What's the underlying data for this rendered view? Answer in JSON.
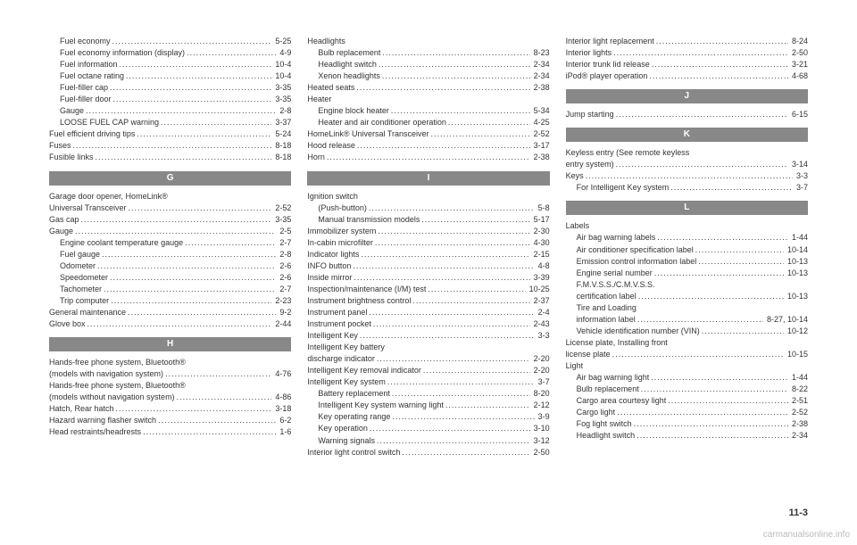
{
  "pageNumber": "11-3",
  "watermark": "carmanualsonline.info",
  "columns": [
    [
      {
        "type": "entry",
        "label": "Fuel economy",
        "page": "5-25",
        "indent": true
      },
      {
        "type": "entry",
        "label": "Fuel economy information (display)",
        "page": "4-9",
        "indent": true
      },
      {
        "type": "entry",
        "label": "Fuel information",
        "page": "10-4",
        "indent": true
      },
      {
        "type": "entry",
        "label": "Fuel octane rating",
        "page": "10-4",
        "indent": true
      },
      {
        "type": "entry",
        "label": "Fuel-filler cap",
        "page": "3-35",
        "indent": true
      },
      {
        "type": "entry",
        "label": "Fuel-filler door",
        "page": "3-35",
        "indent": true
      },
      {
        "type": "entry",
        "label": "Gauge",
        "page": "2-8",
        "indent": true
      },
      {
        "type": "entry",
        "label": "LOOSE FUEL CAP warning",
        "page": "3-37",
        "indent": true
      },
      {
        "type": "entry",
        "label": "Fuel efficient driving tips",
        "page": "5-24"
      },
      {
        "type": "entry",
        "label": "Fuses",
        "page": "8-18"
      },
      {
        "type": "entry",
        "label": "Fusible links",
        "page": "8-18"
      },
      {
        "type": "section",
        "label": "G"
      },
      {
        "type": "entry",
        "label": "Garage door opener, HomeLink®",
        "noPage": true
      },
      {
        "type": "entry",
        "label": "Universal Transceiver",
        "page": "2-52"
      },
      {
        "type": "entry",
        "label": "Gas cap",
        "page": "3-35"
      },
      {
        "type": "entry",
        "label": "Gauge",
        "page": "2-5"
      },
      {
        "type": "entry",
        "label": "Engine coolant temperature gauge",
        "page": "2-7",
        "indent": true
      },
      {
        "type": "entry",
        "label": "Fuel gauge",
        "page": "2-8",
        "indent": true
      },
      {
        "type": "entry",
        "label": "Odometer",
        "page": "2-6",
        "indent": true
      },
      {
        "type": "entry",
        "label": "Speedometer",
        "page": "2-6",
        "indent": true
      },
      {
        "type": "entry",
        "label": "Tachometer",
        "page": "2-7",
        "indent": true
      },
      {
        "type": "entry",
        "label": "Trip computer",
        "page": "2-23",
        "indent": true
      },
      {
        "type": "entry",
        "label": "General maintenance",
        "page": "9-2"
      },
      {
        "type": "entry",
        "label": "Glove box",
        "page": "2-44"
      },
      {
        "type": "section",
        "label": "H"
      },
      {
        "type": "entry",
        "label": "Hands-free phone system, Bluetooth®",
        "noPage": true
      },
      {
        "type": "entry",
        "label": "(models with navigation system)",
        "page": "4-76"
      },
      {
        "type": "entry",
        "label": "Hands-free phone system, Bluetooth®",
        "noPage": true
      },
      {
        "type": "entry",
        "label": "(models without navigation system)",
        "page": "4-86"
      },
      {
        "type": "entry",
        "label": "Hatch, Rear hatch",
        "page": "3-18"
      },
      {
        "type": "entry",
        "label": "Hazard warning flasher switch",
        "page": "6-2"
      },
      {
        "type": "entry",
        "label": "Head restraints/headrests",
        "page": "1-6"
      }
    ],
    [
      {
        "type": "entry",
        "label": "Headlights",
        "noPage": true
      },
      {
        "type": "entry",
        "label": "Bulb replacement",
        "page": "8-23",
        "indent": true
      },
      {
        "type": "entry",
        "label": "Headlight switch",
        "page": "2-34",
        "indent": true
      },
      {
        "type": "entry",
        "label": "Xenon headlights",
        "page": "2-34",
        "indent": true
      },
      {
        "type": "entry",
        "label": "Heated seats",
        "page": "2-38"
      },
      {
        "type": "entry",
        "label": "Heater",
        "noPage": true
      },
      {
        "type": "entry",
        "label": "Engine block heater",
        "page": "5-34",
        "indent": true
      },
      {
        "type": "entry",
        "label": "Heater and air conditioner operation",
        "page": "4-25",
        "indent": true
      },
      {
        "type": "entry",
        "label": "HomeLink® Universal Transceiver",
        "page": "2-52"
      },
      {
        "type": "entry",
        "label": "Hood release",
        "page": "3-17"
      },
      {
        "type": "entry",
        "label": "Horn",
        "page": "2-38"
      },
      {
        "type": "section",
        "label": "I"
      },
      {
        "type": "entry",
        "label": "Ignition switch",
        "noPage": true
      },
      {
        "type": "entry",
        "label": "(Push-button)",
        "page": "5-8",
        "indent": true
      },
      {
        "type": "entry",
        "label": "Manual transmission models",
        "page": "5-17",
        "indent": true
      },
      {
        "type": "entry",
        "label": "Immobilizer system",
        "page": "2-30"
      },
      {
        "type": "entry",
        "label": "In-cabin microfilter",
        "page": "4-30"
      },
      {
        "type": "entry",
        "label": "Indicator lights",
        "page": "2-15"
      },
      {
        "type": "entry",
        "label": "INFO button",
        "page": "4-8"
      },
      {
        "type": "entry",
        "label": "Inside mirror",
        "page": "3-39"
      },
      {
        "type": "entry",
        "label": "Inspection/maintenance (I/M) test",
        "page": "10-25"
      },
      {
        "type": "entry",
        "label": "Instrument brightness control",
        "page": "2-37"
      },
      {
        "type": "entry",
        "label": "Instrument panel",
        "page": "2-4"
      },
      {
        "type": "entry",
        "label": "Instrument pocket",
        "page": "2-43"
      },
      {
        "type": "entry",
        "label": "Intelligent Key",
        "page": "3-3"
      },
      {
        "type": "entry",
        "label": "Intelligent Key battery",
        "noPage": true
      },
      {
        "type": "entry",
        "label": "discharge indicator",
        "page": "2-20"
      },
      {
        "type": "entry",
        "label": "Intelligent Key removal indicator",
        "page": "2-20"
      },
      {
        "type": "entry",
        "label": "Intelligent Key system",
        "page": "3-7"
      },
      {
        "type": "entry",
        "label": "Battery replacement",
        "page": "8-20",
        "indent": true
      },
      {
        "type": "entry",
        "label": "Intelligent Key system warning light",
        "page": "2-12",
        "indent": true
      },
      {
        "type": "entry",
        "label": "Key operating range",
        "page": "3-9",
        "indent": true
      },
      {
        "type": "entry",
        "label": "Key operation",
        "page": "3-10",
        "indent": true
      },
      {
        "type": "entry",
        "label": "Warning signals",
        "page": "3-12",
        "indent": true
      },
      {
        "type": "entry",
        "label": "Interior light control switch",
        "page": "2-50"
      }
    ],
    [
      {
        "type": "entry",
        "label": "Interior light replacement",
        "page": "8-24"
      },
      {
        "type": "entry",
        "label": "Interior lights",
        "page": "2-50"
      },
      {
        "type": "entry",
        "label": "Interior trunk lid release",
        "page": "3-21"
      },
      {
        "type": "entry",
        "label": "iPod® player operation",
        "page": "4-68"
      },
      {
        "type": "section",
        "label": "J"
      },
      {
        "type": "entry",
        "label": "Jump starting",
        "page": "6-15"
      },
      {
        "type": "section",
        "label": "K"
      },
      {
        "type": "entry",
        "label": "Keyless entry (See remote keyless",
        "noPage": true
      },
      {
        "type": "entry",
        "label": "entry system)",
        "page": "3-14"
      },
      {
        "type": "entry",
        "label": "Keys",
        "page": "3-3"
      },
      {
        "type": "entry",
        "label": "For Intelligent Key system",
        "page": "3-7",
        "indent": true
      },
      {
        "type": "section",
        "label": "L"
      },
      {
        "type": "entry",
        "label": "Labels",
        "noPage": true
      },
      {
        "type": "entry",
        "label": "Air bag warning labels",
        "page": "1-44",
        "indent": true
      },
      {
        "type": "entry",
        "label": "Air conditioner specification label",
        "page": "10-14",
        "indent": true
      },
      {
        "type": "entry",
        "label": "Emission control information label",
        "page": "10-13",
        "indent": true
      },
      {
        "type": "entry",
        "label": "Engine serial number",
        "page": "10-13",
        "indent": true
      },
      {
        "type": "entry",
        "label": "F.M.V.S.S./C.M.V.S.S.",
        "noPage": true,
        "indent": true
      },
      {
        "type": "entry",
        "label": "certification label",
        "page": "10-13",
        "indent": true
      },
      {
        "type": "entry",
        "label": "Tire and Loading",
        "noPage": true,
        "indent": true
      },
      {
        "type": "entry",
        "label": "information label",
        "page": "8-27, 10-14",
        "indent": true
      },
      {
        "type": "entry",
        "label": "Vehicle identification number (VIN)",
        "page": "10-12",
        "indent": true
      },
      {
        "type": "entry",
        "label": "License plate, Installing front",
        "noPage": true
      },
      {
        "type": "entry",
        "label": "license plate",
        "page": "10-15"
      },
      {
        "type": "entry",
        "label": "Light",
        "noPage": true
      },
      {
        "type": "entry",
        "label": "Air bag warning light",
        "page": "1-44",
        "indent": true
      },
      {
        "type": "entry",
        "label": "Bulb replacement",
        "page": "8-22",
        "indent": true
      },
      {
        "type": "entry",
        "label": "Cargo area courtesy light",
        "page": "2-51",
        "indent": true
      },
      {
        "type": "entry",
        "label": "Cargo light",
        "page": "2-52",
        "indent": true
      },
      {
        "type": "entry",
        "label": "Fog light switch",
        "page": "2-38",
        "indent": true
      },
      {
        "type": "entry",
        "label": "Headlight switch",
        "page": "2-34",
        "indent": true
      }
    ]
  ]
}
